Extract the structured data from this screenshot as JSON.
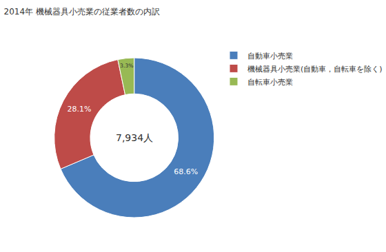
{
  "chart_data": {
    "type": "pie",
    "title": "2014年 機械器具小売業の従業者数の内訳",
    "categories": [
      "自動車小売業",
      "機械器具小売業(自動車，自転車を除く)",
      "自転車小売業"
    ],
    "values": [
      68.6,
      28.1,
      3.3
    ],
    "value_labels": [
      "68.6%",
      "28.1%",
      "3.3%"
    ],
    "colors": [
      "#4a7ebb",
      "#be4b48",
      "#98b954"
    ],
    "data_labels": true,
    "legend": "right",
    "annotation": "7,934人"
  }
}
